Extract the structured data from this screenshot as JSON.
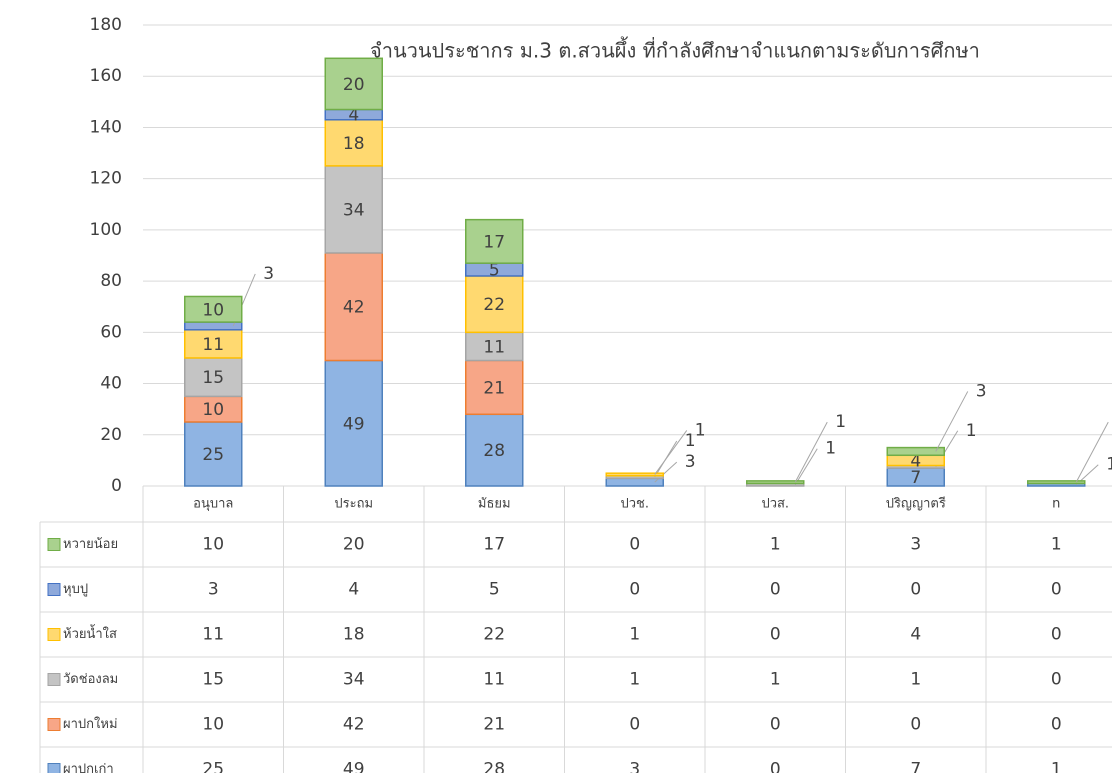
{
  "chart_data": {
    "type": "stacked_bar",
    "title": "จำนวนประชากร ม.3 ต.สวนผึ้ง ที่กำลังศึกษาจำแนกตามระดับการศึกษา",
    "categories": [
      "อนุบาล",
      "ประถม",
      "มัธยม",
      "ปวช.",
      "ปวส.",
      "ปริญญาตรี",
      "n"
    ],
    "series": [
      {
        "name": "ผาปกเก่า",
        "color": "#8fb4e3",
        "border_color": "#4f81bd",
        "values": [
          25,
          49,
          28,
          3,
          0,
          7,
          1
        ]
      },
      {
        "name": "ผาปกใหม่",
        "color": "#f7a687",
        "border_color": "#ed7d31",
        "values": [
          10,
          42,
          21,
          0,
          0,
          0,
          0
        ]
      },
      {
        "name": "วัดช่องลม",
        "color": "#c4c4c4",
        "border_color": "#a5a5a5",
        "values": [
          15,
          34,
          11,
          1,
          1,
          1,
          0
        ]
      },
      {
        "name": "ห้วยน้ำใส",
        "color": "#ffd970",
        "border_color": "#ffc000",
        "values": [
          11,
          18,
          22,
          1,
          0,
          4,
          0
        ]
      },
      {
        "name": "หุบปู",
        "color": "#8ea9db",
        "border_color": "#4472c4",
        "values": [
          3,
          4,
          5,
          0,
          0,
          0,
          0
        ]
      },
      {
        "name": "หวายน้อย",
        "color": "#a9d18e",
        "border_color": "#70ad47",
        "values": [
          10,
          20,
          17,
          0,
          1,
          3,
          1
        ]
      }
    ],
    "ylim": [
      0,
      180
    ],
    "yticks": [
      0,
      20,
      40,
      60,
      80,
      100,
      120,
      140,
      160,
      180
    ],
    "grid": true
  }
}
